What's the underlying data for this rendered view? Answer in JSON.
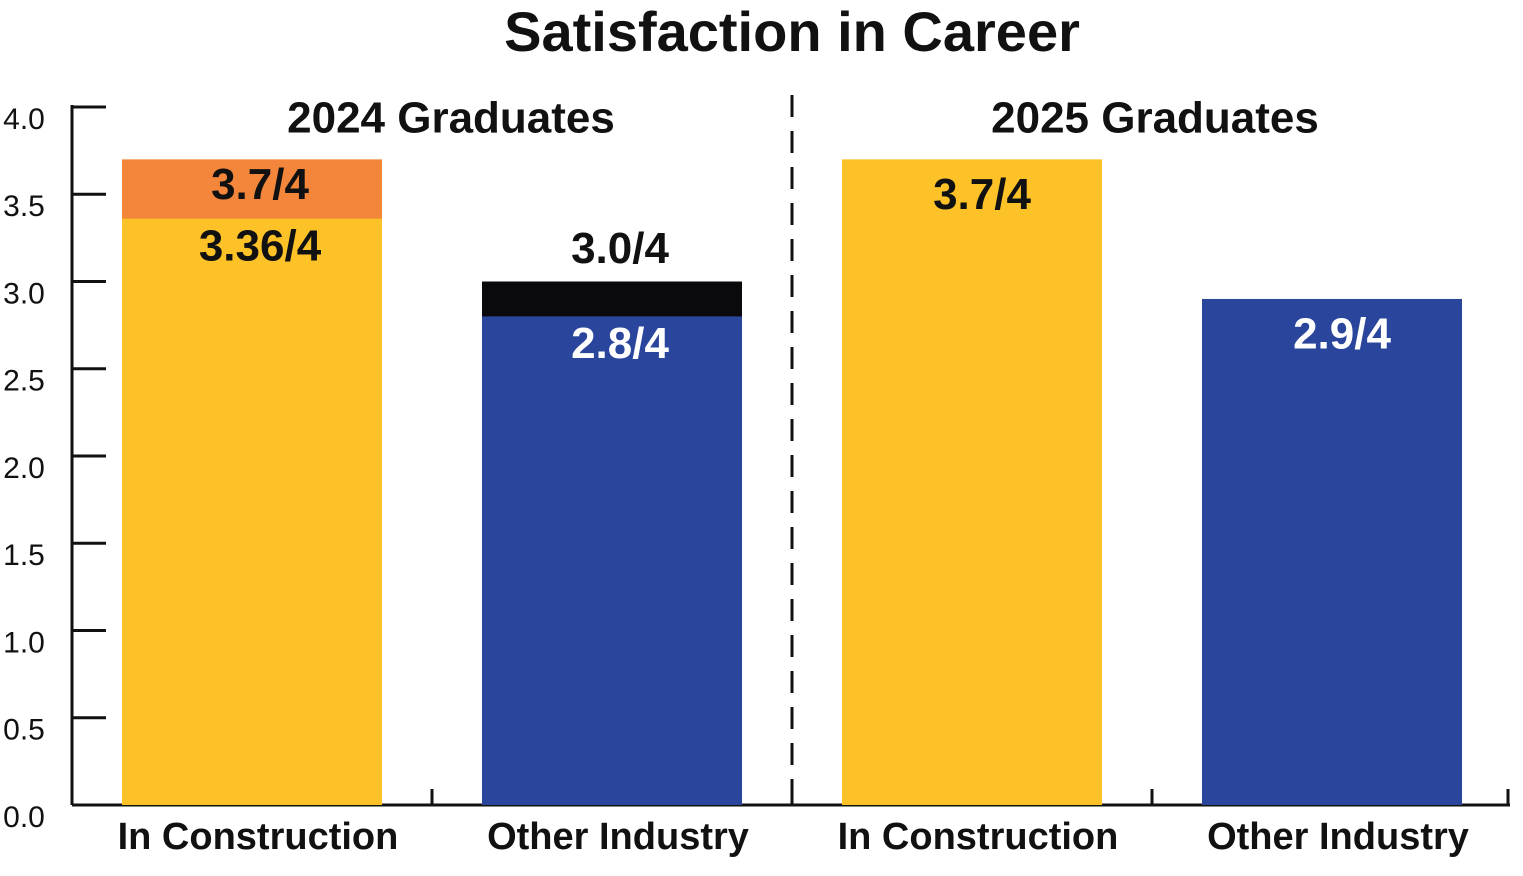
{
  "chart_data": {
    "type": "bar",
    "title": "Satisfaction in Career",
    "groups": [
      "2024 Graduates",
      "2025 Graduates"
    ],
    "categories": [
      "In Construction",
      "Other Industry",
      "In Construction",
      "Other Industry"
    ],
    "series": [
      {
        "colors": [
          "#f3863a",
          "#0a0a0c",
          "#fdc228",
          "#2a459c"
        ],
        "values": [
          3.7,
          3.0,
          3.7,
          2.9
        ],
        "value_labels": [
          "3.7/4",
          "3.0/4",
          "3.7/4",
          "2.9/4"
        ]
      },
      {
        "colors": [
          "#fdc228",
          "#2a459c",
          null,
          null
        ],
        "values": [
          3.36,
          2.8,
          null,
          null
        ],
        "value_labels": [
          "3.36/4",
          "2.8/4",
          null,
          null
        ]
      }
    ],
    "ylim": [
      0,
      4
    ],
    "yticks": [
      {
        "value": 0,
        "label": "0.0"
      },
      0.5,
      {
        "value": 1,
        "label": "1.0"
      },
      1.5,
      {
        "value": 2,
        "label": "2.0"
      },
      2.5,
      {
        "value": 3,
        "label": "3.0"
      },
      3.5,
      {
        "value": 4,
        "label": "4.0"
      }
    ]
  }
}
